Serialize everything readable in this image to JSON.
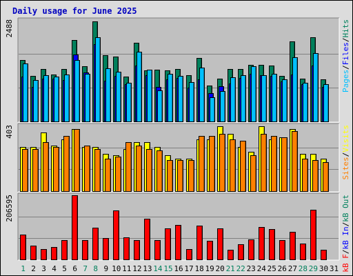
{
  "chart_data": {
    "title": "Daily usage for June 2025",
    "type": "bar",
    "categories": [
      "1",
      "2",
      "3",
      "4",
      "5",
      "6",
      "7",
      "8",
      "9",
      "10",
      "11",
      "12",
      "13",
      "14",
      "15",
      "16",
      "17",
      "18",
      "19",
      "20",
      "21",
      "22",
      "23",
      "24",
      "25",
      "26",
      "27",
      "28",
      "29",
      "30",
      "31"
    ],
    "weekend_days": [
      "1",
      "7",
      "8",
      "14",
      "15",
      "21",
      "22",
      "28",
      "29"
    ],
    "colors": {
      "hits": "#00805c",
      "files": "#0000ff",
      "pages": "#00c0ff",
      "visits": "#ffff00",
      "sites": "#ff8000",
      "kbin": "#0000ff",
      "kbout": "#ff8000",
      "kbf": "#ff0000",
      "weekday_label": "#000000",
      "weekend_label": "#00805c"
    },
    "panels": [
      {
        "id": "hits",
        "max_label": "2488",
        "ymax": 2488,
        "grid": true,
        "right_labels": [
          {
            "text": "Pages",
            "color": "#00c0ff"
          },
          {
            "text": "/",
            "color": "#000000"
          },
          {
            "text": "Files",
            "color": "#0000ff"
          },
          {
            "text": "/",
            "color": "#000000"
          },
          {
            "text": "Hits",
            "color": "#00805c"
          }
        ],
        "series": [
          {
            "name": "Hits",
            "color": "#00805c",
            "values": [
              1500,
              1110,
              1290,
              1150,
              1290,
              2000,
              1350,
              2460,
              1620,
              1590,
              1100,
              1930,
              1260,
              1270,
              1260,
              1290,
              1130,
              1550,
              880,
              1050,
              1290,
              1290,
              1380,
              1380,
              1370,
              1120,
              1970,
              1050,
              2070,
              1040,
              0
            ]
          },
          {
            "name": "Files",
            "color": "#0000ff",
            "values": [
              1100,
              850,
              1050,
              1050,
              1020,
              1640,
              1200,
              1890,
              1000,
              1120,
              920,
              1370,
              1140,
              840,
              1040,
              1060,
              830,
              1030,
              690,
              860,
              930,
              1070,
              1170,
              1130,
              1110,
              980,
              1150,
              920,
              1370,
              850,
              0
            ]
          },
          {
            "name": "Pages",
            "color": "#00c0ff",
            "values": [
              1420,
              1020,
              1140,
              1100,
              1150,
              1500,
              1170,
              2070,
              1300,
              1220,
              940,
              1710,
              1270,
              770,
              1170,
              1110,
              960,
              1320,
              590,
              740,
              1090,
              1140,
              1350,
              1130,
              1160,
              1030,
              1570,
              950,
              1680,
              910,
              0
            ]
          }
        ]
      },
      {
        "id": "visits",
        "max_label": "403",
        "ymax": 403,
        "grid": true,
        "right_labels": [
          {
            "text": "Sites",
            "color": "#ff8000"
          },
          {
            "text": "/",
            "color": "#000000"
          },
          {
            "text": "Visits",
            "color": "#ffff00"
          }
        ],
        "series": [
          {
            "name": "Visits",
            "color": "#ffff00",
            "values": [
              270,
              270,
              360,
              280,
              320,
              380,
              270,
              270,
              230,
              220,
              260,
              300,
              300,
              270,
              220,
              200,
              200,
              320,
              320,
              400,
              350,
              270,
              240,
              400,
              320,
              330,
              380,
              230,
              230,
              200,
              0
            ]
          },
          {
            "name": "Sites",
            "color": "#ff8000",
            "values": [
              260,
              260,
              300,
              270,
              340,
              380,
              280,
              260,
              200,
              210,
              300,
              280,
              260,
              250,
              190,
              190,
              190,
              340,
              340,
              350,
              320,
              310,
              220,
              350,
              340,
              330,
              370,
              200,
              190,
              180,
              0
            ]
          }
        ]
      },
      {
        "id": "kbytes",
        "max_label": "206595",
        "ymax": 206595,
        "grid": true,
        "right_labels": [
          {
            "text": "kB F",
            "color": "#ff0000"
          },
          {
            "text": "/",
            "color": "#000000"
          },
          {
            "text": "kB In",
            "color": "#0000ff"
          },
          {
            "text": "/",
            "color": "#000000"
          },
          {
            "text": "kB Out",
            "color": "#00805c"
          }
        ],
        "series": [
          {
            "name": "kB F",
            "color": "#ff0000",
            "values": [
              80000,
              45000,
              33000,
              40000,
              62000,
              206595,
              63000,
              102000,
              68000,
              158000,
              72000,
              62000,
              130000,
              62000,
              99000,
              110000,
              33000,
              108000,
              60000,
              100000,
              30000,
              48000,
              64000,
              104000,
              98000,
              62000,
              89000,
              51000,
              160000,
              30000,
              0
            ]
          }
        ]
      }
    ]
  }
}
